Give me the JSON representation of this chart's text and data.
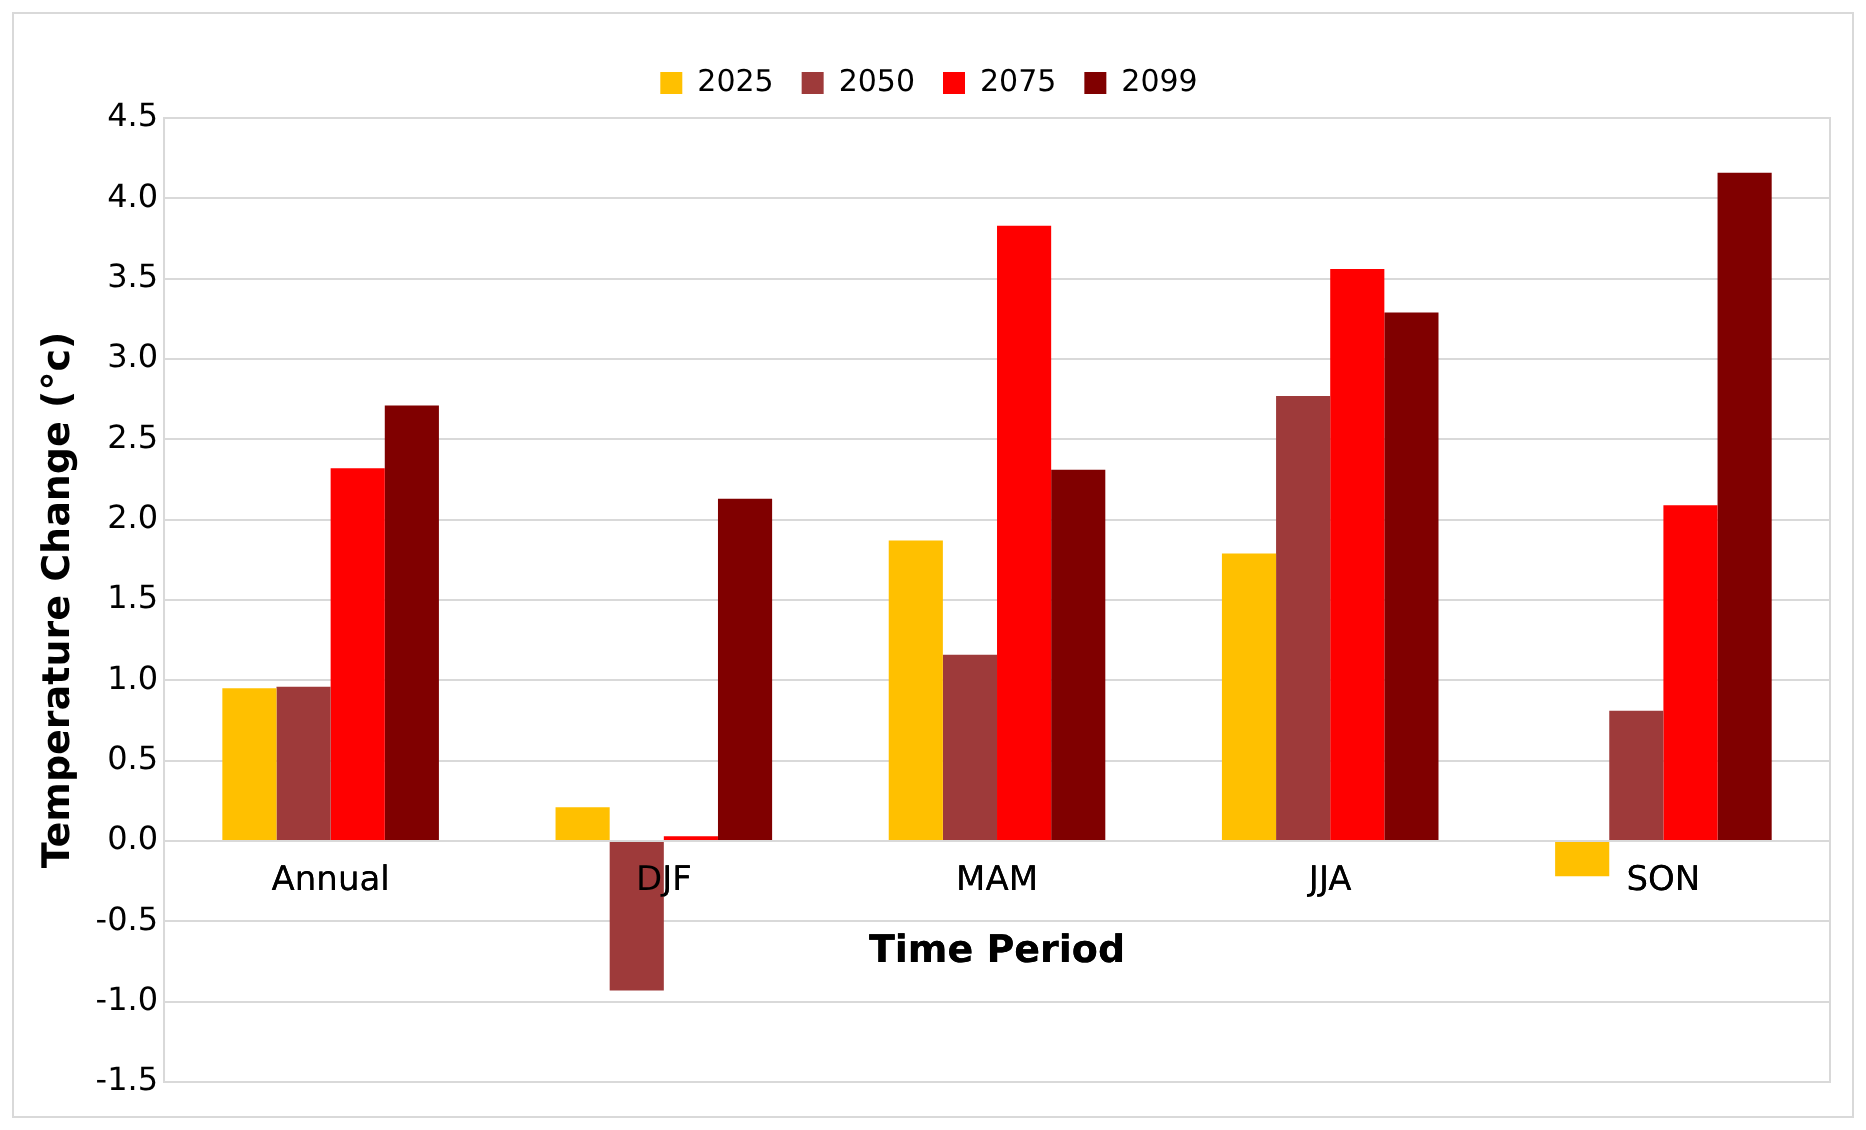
{
  "chart_data": {
    "type": "bar",
    "xlabel": "Time Period",
    "ylabel": "Temperature Change (°c)",
    "categories": [
      "Annual",
      "DJF",
      "MAM",
      "JJA",
      "SON"
    ],
    "series": [
      {
        "name": "2025",
        "color": "#ffc000",
        "values": [
          0.95,
          0.21,
          1.87,
          1.79,
          -0.22
        ]
      },
      {
        "name": "2050",
        "color": "#9e3a3a",
        "values": [
          0.96,
          -0.93,
          1.16,
          2.77,
          0.81
        ]
      },
      {
        "name": "2075",
        "color": "#ff0000",
        "values": [
          2.32,
          0.03,
          3.83,
          3.56,
          2.09
        ]
      },
      {
        "name": "2099",
        "color": "#800000",
        "values": [
          2.71,
          2.13,
          2.31,
          3.29,
          4.16
        ]
      }
    ],
    "ylim": [
      -1.5,
      4.5
    ],
    "yticks": [
      {
        "value": -1.5,
        "label": "-1.5"
      },
      {
        "value": -1,
        "label": "-1.0"
      },
      {
        "value": -0.5,
        "label": "-0.5"
      },
      {
        "value": 0,
        "label": "0.0"
      },
      {
        "value": 0.5,
        "label": "0.5"
      },
      {
        "value": 1,
        "label": "1.0"
      },
      {
        "value": 1.5,
        "label": "1.5"
      },
      {
        "value": 2,
        "label": "2.0"
      },
      {
        "value": 2.5,
        "label": "2.5"
      },
      {
        "value": 3,
        "label": "3.0"
      },
      {
        "value": 3.5,
        "label": "3.5"
      },
      {
        "value": 4,
        "label": "4.0"
      },
      {
        "value": 4.5,
        "label": "4.5"
      }
    ],
    "grid": "y",
    "legend": "top"
  }
}
